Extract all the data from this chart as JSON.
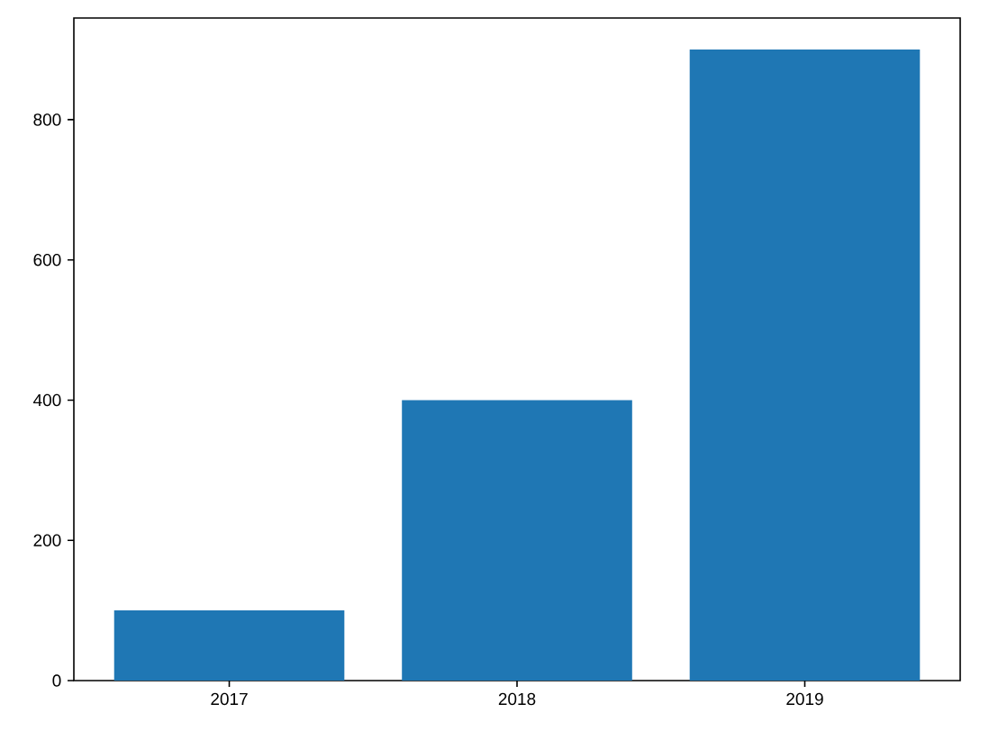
{
  "chart_data": {
    "type": "bar",
    "categories": [
      "2017",
      "2018",
      "2019"
    ],
    "values": [
      100,
      400,
      900
    ],
    "color": "#1f77b4",
    "ylim": [
      0,
      945
    ],
    "yticks": [
      0,
      200,
      400,
      600,
      800
    ]
  }
}
